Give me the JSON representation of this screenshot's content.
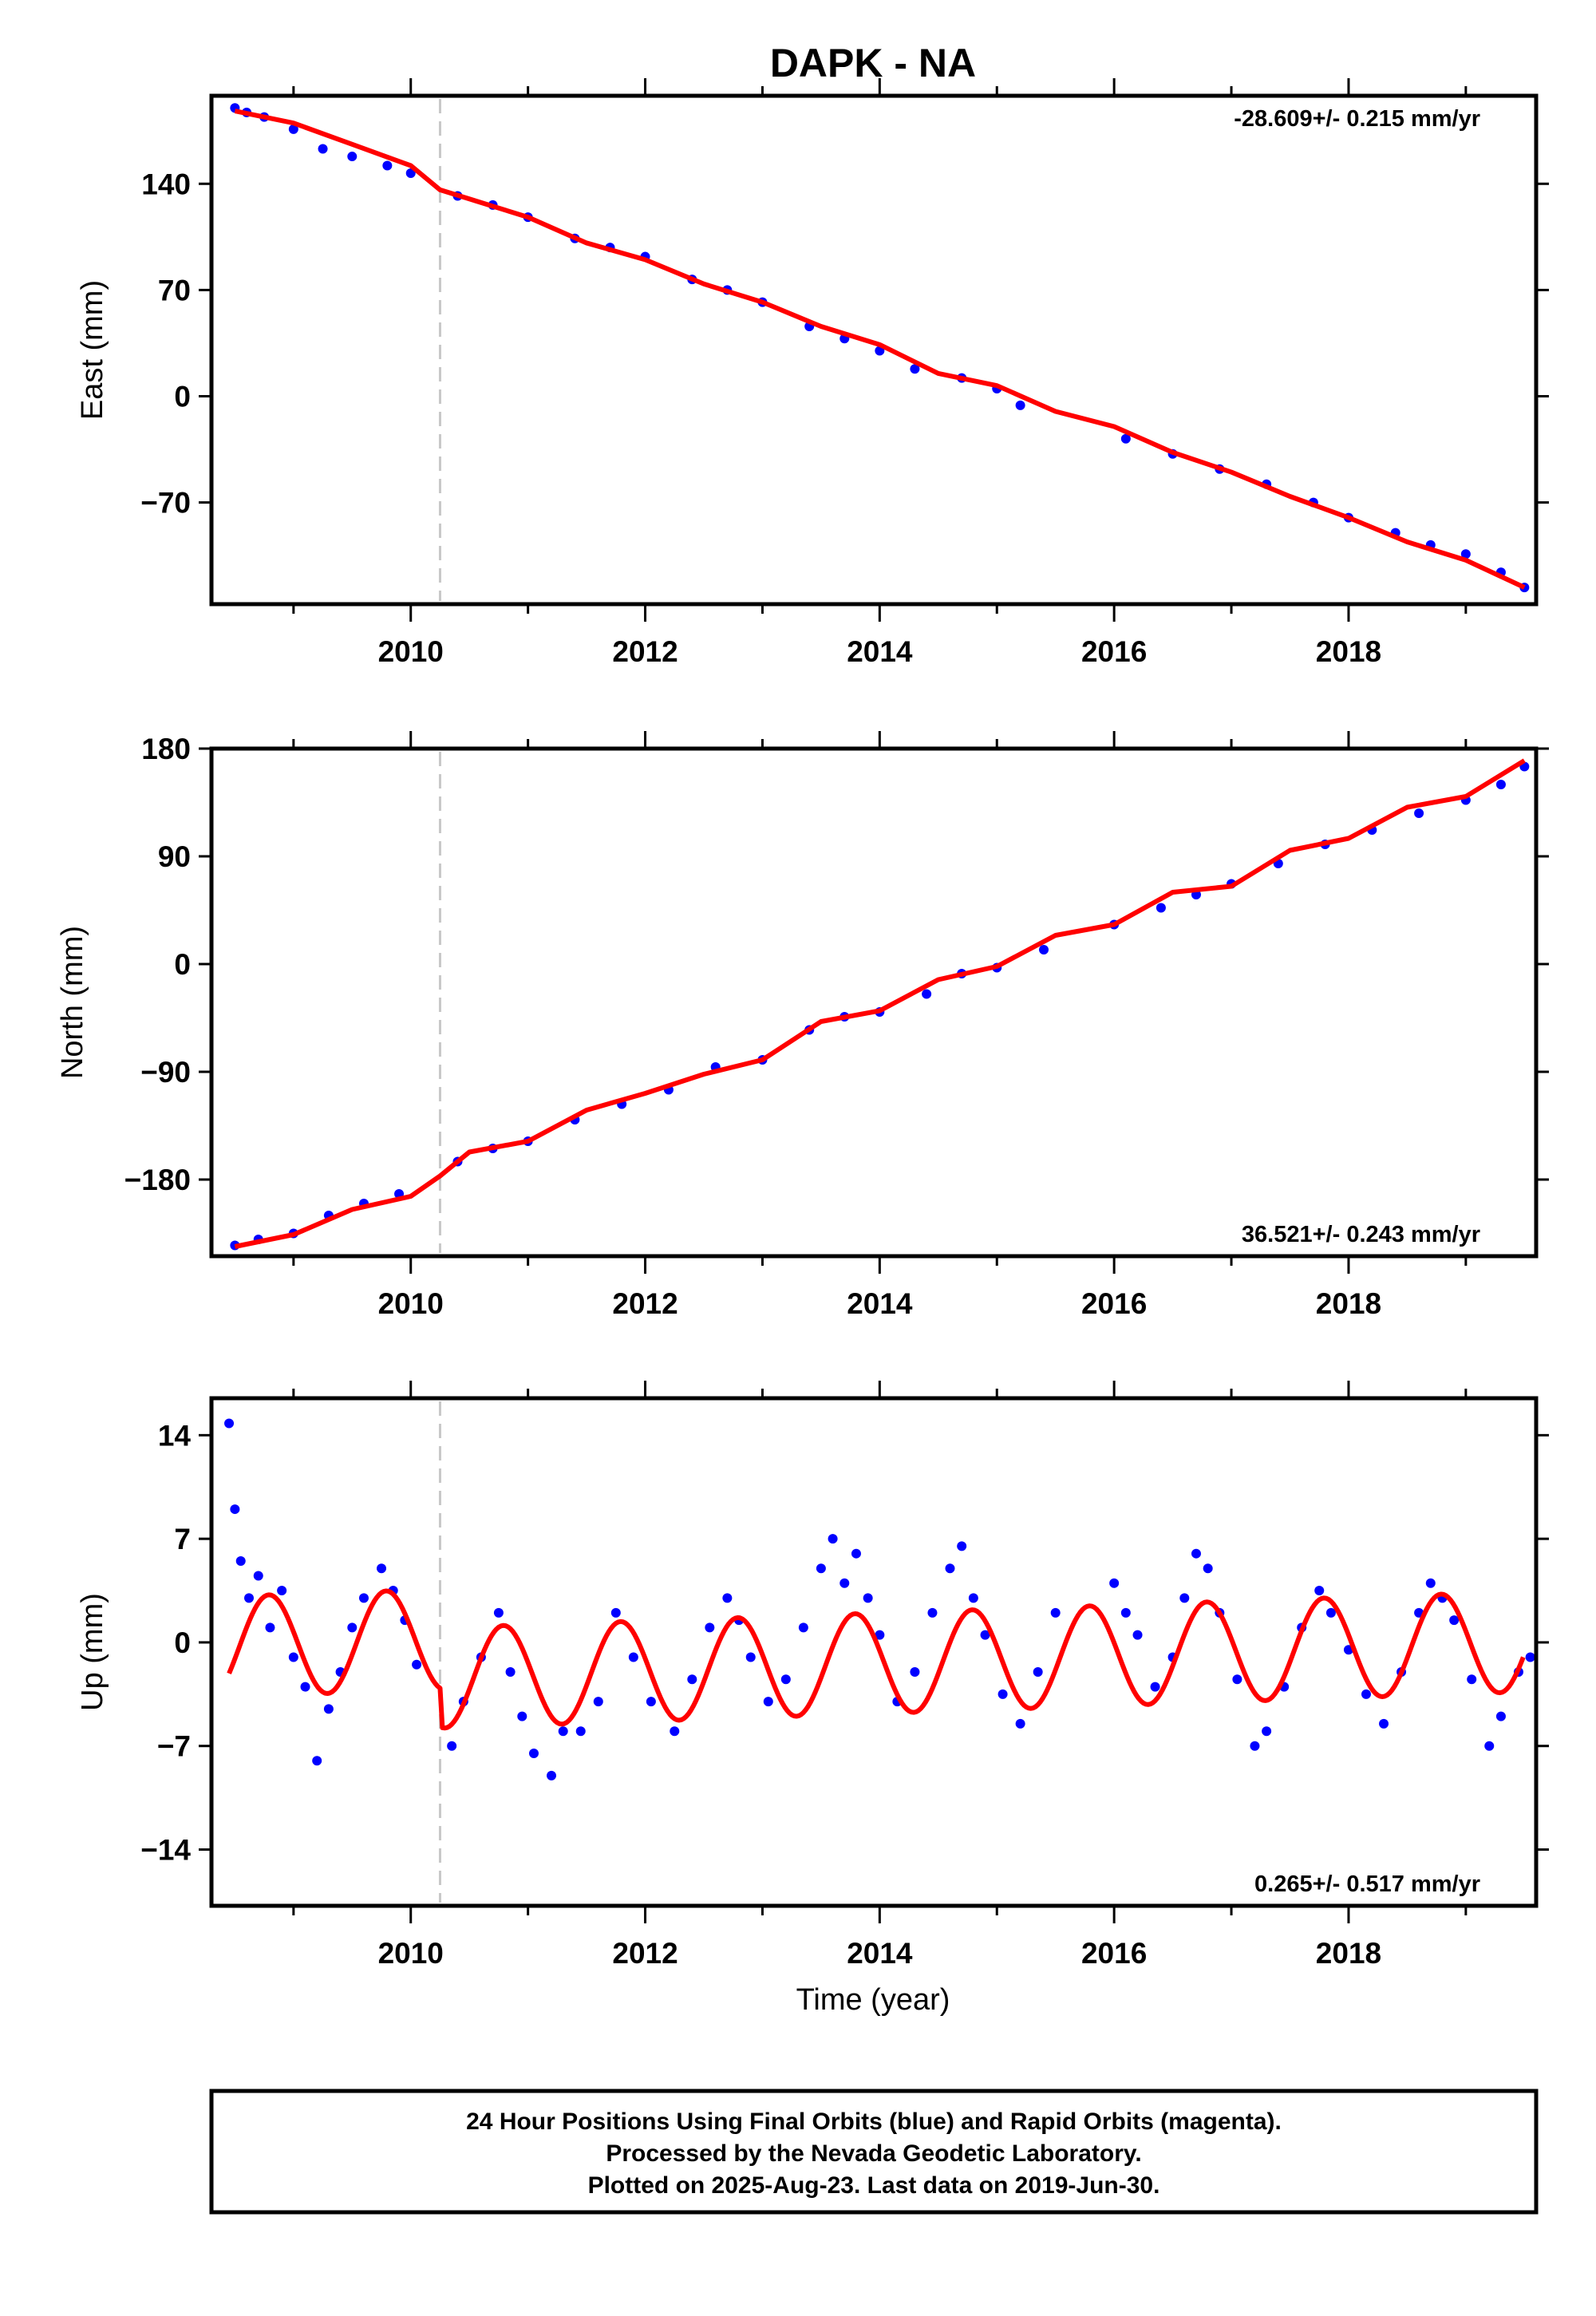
{
  "title": "DAPK - NA",
  "xlabel": "Time (year)",
  "footer": [
    "24 Hour Positions Using Final Orbits (blue) and Rapid Orbits (magenta).",
    "Processed by the Nevada Geodetic Laboratory.",
    "Plotted on 2025-Aug-23. Last data on 2019-Jun-30."
  ],
  "colors": {
    "data": "#0000ff",
    "fit": "#ff0000",
    "offset_line": "#c8c8c8"
  },
  "chart_data": [
    {
      "type": "scatter",
      "ylabel": "East (mm)",
      "rate_text": "-28.609+/- 0.215 mm/yr",
      "xlim": [
        2008.3,
        2019.6
      ],
      "ylim": [
        -137,
        198
      ],
      "xticks": [
        2010,
        2012,
        2014,
        2016,
        2018
      ],
      "yticks": [
        140,
        70,
        0,
        -70
      ],
      "ytick_labels": [
        "140",
        "70",
        "0",
        "−70"
      ],
      "offset_epoch": 2010.25,
      "fit": {
        "x": [
          2008.5,
          2009.0,
          2009.5,
          2010.0,
          2010.25,
          2010.5,
          2011.0,
          2011.5,
          2012.0,
          2012.5,
          2013.0,
          2013.5,
          2014.0,
          2014.5,
          2015.0,
          2015.5,
          2016.0,
          2016.5,
          2017.0,
          2017.5,
          2018.0,
          2018.5,
          2019.0,
          2019.5
        ],
        "y": [
          188,
          180,
          166,
          152,
          136,
          130,
          118,
          101,
          90,
          74,
          62,
          46,
          34,
          15,
          7,
          -10,
          -20,
          -37,
          -50,
          -66,
          -80,
          -96,
          -108,
          -126
        ]
      },
      "points": {
        "x": [
          2008.5,
          2008.6,
          2008.75,
          2009.0,
          2009.25,
          2009.5,
          2009.8,
          2010.0,
          2010.4,
          2010.7,
          2011.0,
          2011.4,
          2011.7,
          2012.0,
          2012.4,
          2012.7,
          2013.0,
          2013.4,
          2013.7,
          2014.0,
          2014.3,
          2014.7,
          2015.0,
          2015.2,
          2016.1,
          2016.5,
          2016.9,
          2017.3,
          2017.7,
          2018.0,
          2018.4,
          2018.7,
          2019.0,
          2019.3,
          2019.5
        ],
        "y": [
          190,
          187,
          184,
          176,
          163,
          158,
          152,
          147,
          132,
          126,
          118,
          104,
          98,
          92,
          77,
          70,
          62,
          46,
          38,
          30,
          18,
          12,
          5,
          -6,
          -28,
          -38,
          -48,
          -58,
          -70,
          -80,
          -90,
          -98,
          -104,
          -116,
          -126
        ]
      }
    },
    {
      "type": "scatter",
      "ylabel": "North (mm)",
      "rate_text": "36.521+/- 0.243 mm/yr",
      "xlim": [
        2008.3,
        2019.6
      ],
      "ylim": [
        -244,
        180
      ],
      "xticks": [
        2010,
        2012,
        2014,
        2016,
        2018
      ],
      "yticks": [
        180,
        90,
        0,
        -90,
        -180
      ],
      "ytick_labels": [
        "180",
        "90",
        "0",
        "−90",
        "−180"
      ],
      "offset_epoch": 2010.25,
      "fit": {
        "x": [
          2008.5,
          2009.0,
          2009.5,
          2010.0,
          2010.25,
          2010.5,
          2011.0,
          2011.5,
          2012.0,
          2012.5,
          2013.0,
          2013.5,
          2014.0,
          2014.5,
          2015.0,
          2015.5,
          2016.0,
          2016.5,
          2017.0,
          2017.5,
          2018.0,
          2018.5,
          2019.0,
          2019.5
        ],
        "y": [
          -236,
          -226,
          -205,
          -194,
          -177,
          -157,
          -148,
          -122,
          -108,
          -92,
          -80,
          -48,
          -39,
          -13,
          -2,
          24,
          33,
          60,
          65,
          95,
          105,
          131,
          140,
          170
        ]
      },
      "points": {
        "x": [
          2008.5,
          2008.7,
          2009.0,
          2009.3,
          2009.6,
          2009.9,
          2010.4,
          2010.7,
          2011.0,
          2011.4,
          2011.8,
          2012.2,
          2012.6,
          2013.0,
          2013.4,
          2013.7,
          2014.0,
          2014.4,
          2014.7,
          2015.0,
          2015.4,
          2016.0,
          2016.4,
          2016.7,
          2017.0,
          2017.4,
          2017.8,
          2018.2,
          2018.6,
          2019.0,
          2019.3,
          2019.5
        ],
        "y": [
          -235,
          -230,
          -225,
          -210,
          -200,
          -192,
          -165,
          -154,
          -148,
          -130,
          -117,
          -105,
          -86,
          -80,
          -55,
          -44,
          -40,
          -25,
          -8,
          -3,
          12,
          33,
          47,
          58,
          67,
          84,
          100,
          112,
          126,
          137,
          150,
          165
        ]
      }
    },
    {
      "type": "scatter",
      "ylabel": "Up (mm)",
      "rate_text": "0.265+/- 0.517 mm/yr",
      "xlim": [
        2008.3,
        2019.6
      ],
      "ylim": [
        -17.8,
        16.5
      ],
      "xticks": [
        2010,
        2012,
        2014,
        2016,
        2018
      ],
      "yticks": [
        14,
        7,
        0,
        -7,
        -14
      ],
      "ytick_labels": [
        "14",
        "7",
        "0",
        "−7",
        "−14"
      ],
      "offset_epoch": 2010.25,
      "fit": {
        "amplitude": 3.4,
        "phase_year": 0.54,
        "rate": 0.265,
        "offset_after": -2.6,
        "y0": 0.2,
        "x0": 2010.25
      },
      "points": {
        "x": [
          2008.45,
          2008.5,
          2008.55,
          2008.62,
          2008.7,
          2008.8,
          2008.9,
          2009.0,
          2009.1,
          2009.2,
          2009.3,
          2009.4,
          2009.5,
          2009.6,
          2009.75,
          2009.85,
          2009.95,
          2010.05,
          2010.35,
          2010.45,
          2010.6,
          2010.75,
          2010.85,
          2010.95,
          2011.05,
          2011.2,
          2011.3,
          2011.45,
          2011.6,
          2011.75,
          2011.9,
          2012.05,
          2012.25,
          2012.4,
          2012.55,
          2012.7,
          2012.8,
          2012.9,
          2013.05,
          2013.2,
          2013.35,
          2013.5,
          2013.6,
          2013.7,
          2013.8,
          2013.9,
          2014.0,
          2014.15,
          2014.3,
          2014.45,
          2014.6,
          2014.7,
          2014.8,
          2014.9,
          2015.05,
          2015.2,
          2015.35,
          2015.5,
          2016.0,
          2016.1,
          2016.2,
          2016.35,
          2016.5,
          2016.6,
          2016.7,
          2016.8,
          2016.9,
          2017.05,
          2017.2,
          2017.3,
          2017.45,
          2017.6,
          2017.75,
          2017.85,
          2018.0,
          2018.15,
          2018.3,
          2018.45,
          2018.6,
          2018.7,
          2018.8,
          2018.9,
          2019.05,
          2019.2,
          2019.3,
          2019.45,
          2019.55
        ],
        "y": [
          14.8,
          9.0,
          5.5,
          3.0,
          4.5,
          1.0,
          3.5,
          -1.0,
          -3.0,
          -8.0,
          -4.5,
          -2.0,
          1.0,
          3.0,
          5.0,
          3.5,
          1.5,
          -1.5,
          -7.0,
          -4.0,
          -1.0,
          2.0,
          -2.0,
          -5.0,
          -7.5,
          -9.0,
          -6.0,
          -6.0,
          -4.0,
          2.0,
          -1.0,
          -4.0,
          -6.0,
          -2.5,
          1.0,
          3.0,
          1.5,
          -1.0,
          -4.0,
          -2.5,
          1.0,
          5.0,
          7.0,
          4.0,
          6.0,
          3.0,
          0.5,
          -4.0,
          -2.0,
          2.0,
          5.0,
          6.5,
          3.0,
          0.5,
          -3.5,
          -5.5,
          -2.0,
          2.0,
          4.0,
          2.0,
          0.5,
          -3.0,
          -1.0,
          3.0,
          6.0,
          5.0,
          2.0,
          -2.5,
          -7.0,
          -6.0,
          -3.0,
          1.0,
          3.5,
          2.0,
          -0.5,
          -3.5,
          -5.5,
          -2.0,
          2.0,
          4.0,
          3.0,
          1.5,
          -2.5,
          -7.0,
          -5.0,
          -2.0,
          -1.0
        ]
      }
    }
  ]
}
